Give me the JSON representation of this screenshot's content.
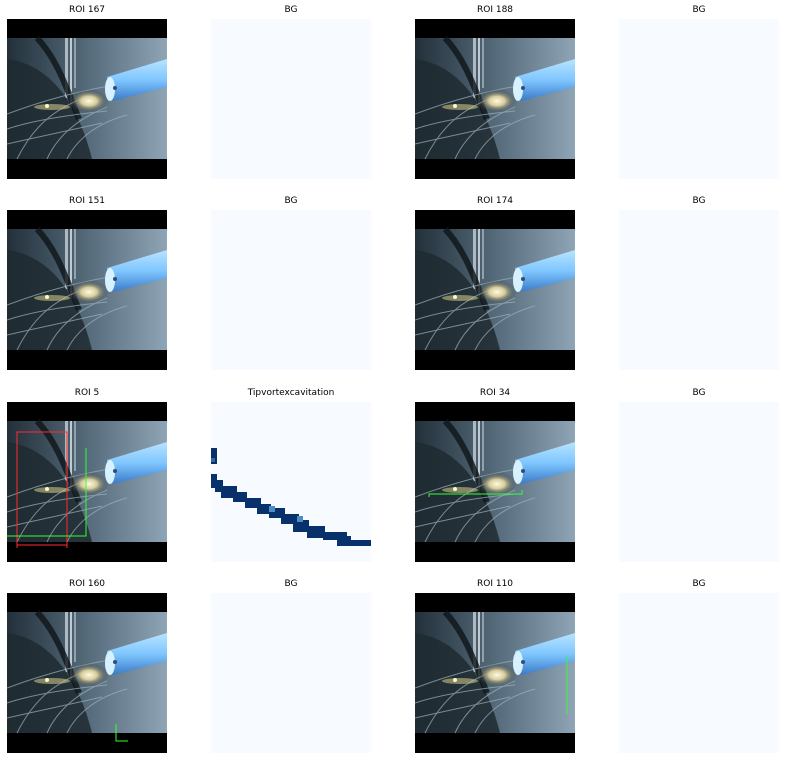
{
  "figure": {
    "rows": [
      {
        "cells": [
          {
            "title": "ROI 167",
            "kind": "roi"
          },
          {
            "title": "BG",
            "kind": "mask-empty"
          },
          {
            "title": "ROI 188",
            "kind": "roi"
          },
          {
            "title": "BG",
            "kind": "mask-empty"
          }
        ]
      },
      {
        "cells": [
          {
            "title": "ROI 151",
            "kind": "roi"
          },
          {
            "title": "BG",
            "kind": "mask-empty"
          },
          {
            "title": "ROI 174",
            "kind": "roi"
          },
          {
            "title": "BG",
            "kind": "mask-empty"
          }
        ]
      },
      {
        "cells": [
          {
            "title": "ROI 5",
            "kind": "roi",
            "overlay": "red-green-box"
          },
          {
            "title": "Tipvortexcavitation",
            "kind": "mask-vortex"
          },
          {
            "title": "ROI 34",
            "kind": "roi",
            "overlay": "green-horizontal-box"
          },
          {
            "title": "BG",
            "kind": "mask-empty"
          }
        ]
      },
      {
        "cells": [
          {
            "title": "ROI 160",
            "kind": "roi",
            "overlay": "green-corner"
          },
          {
            "title": "BG",
            "kind": "mask-empty"
          },
          {
            "title": "ROI 110",
            "kind": "roi",
            "overlay": "green-vertical"
          },
          {
            "title": "BG",
            "kind": "mask-empty"
          }
        ]
      }
    ],
    "colors": {
      "mask_bg": "#f7fbff",
      "mask_fg": "#08306b",
      "roi_red": "#ff2a2a",
      "roi_green": "#33ff33"
    }
  }
}
